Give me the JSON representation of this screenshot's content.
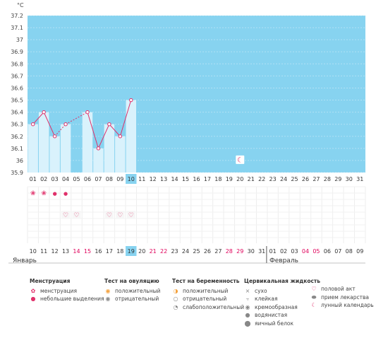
{
  "chart_data": {
    "type": "line",
    "ylabel": "°C",
    "ylim": [
      35.9,
      37.2
    ],
    "yticks": [
      "37.2",
      "37.1",
      "37",
      "36.9",
      "36.8",
      "36.7",
      "36.6",
      "36.5",
      "36.4",
      "36.3",
      "36.2",
      "36.1",
      "36",
      "35.9"
    ],
    "cycle_days": [
      "01",
      "02",
      "03",
      "04",
      "05",
      "06",
      "07",
      "08",
      "09",
      "10",
      "11",
      "12",
      "13",
      "14",
      "15",
      "16",
      "17",
      "18",
      "19",
      "20",
      "21",
      "22",
      "23",
      "24",
      "25",
      "26",
      "27",
      "28",
      "29",
      "30",
      "31"
    ],
    "highlight_cycle_day": "10",
    "temperature_series": {
      "points": [
        {
          "day": 1,
          "value": 36.3
        },
        {
          "day": 2,
          "value": 36.4
        },
        {
          "day": 3,
          "value": 36.2
        },
        {
          "day": 4,
          "value": 36.3
        },
        {
          "day": 6,
          "value": 36.4
        },
        {
          "day": 7,
          "value": 36.1
        },
        {
          "day": 8,
          "value": 36.3
        },
        {
          "day": 9,
          "value": 36.2
        },
        {
          "day": 10,
          "value": 36.5
        }
      ]
    },
    "moon_day": 20,
    "menstruation_days": [
      1,
      2
    ],
    "spotting_days": [
      3,
      4
    ],
    "intercourse_days": [
      4,
      5,
      8,
      9,
      10
    ],
    "calendar_dates": [
      {
        "d": "10",
        "red": false
      },
      {
        "d": "11",
        "red": false
      },
      {
        "d": "12",
        "red": false
      },
      {
        "d": "13",
        "red": false
      },
      {
        "d": "14",
        "red": true
      },
      {
        "d": "15",
        "red": true
      },
      {
        "d": "16",
        "red": false
      },
      {
        "d": "17",
        "red": false
      },
      {
        "d": "18",
        "red": false
      },
      {
        "d": "19",
        "red": false
      },
      {
        "d": "20",
        "red": false
      },
      {
        "d": "21",
        "red": true
      },
      {
        "d": "22",
        "red": true
      },
      {
        "d": "23",
        "red": false
      },
      {
        "d": "24",
        "red": false
      },
      {
        "d": "25",
        "red": false
      },
      {
        "d": "26",
        "red": false
      },
      {
        "d": "27",
        "red": false
      },
      {
        "d": "28",
        "red": true
      },
      {
        "d": "29",
        "red": true
      },
      {
        "d": "30",
        "red": false
      },
      {
        "d": "31",
        "red": false
      },
      {
        "d": "01",
        "red": false
      },
      {
        "d": "02",
        "red": false
      },
      {
        "d": "03",
        "red": false
      },
      {
        "d": "04",
        "red": true
      },
      {
        "d": "05",
        "red": true
      },
      {
        "d": "06",
        "red": false
      },
      {
        "d": "07",
        "red": false
      },
      {
        "d": "08",
        "red": false
      },
      {
        "d": "09",
        "red": false
      }
    ],
    "highlight_calendar_date": "19"
  },
  "months": {
    "first": "Январь",
    "second": "Февраль"
  },
  "legend": {
    "menstruation": {
      "title": "Менструация",
      "items": [
        "менструация",
        "небольшие выделения"
      ]
    },
    "ovulation": {
      "title": "Тест на овуляцию",
      "items": [
        "положительный",
        "отрицательный"
      ]
    },
    "pregnancy": {
      "title": "Тест на беременность",
      "items": [
        "положительный",
        "отрицательный",
        "слабоположительный"
      ]
    },
    "cervical": {
      "title": "Цервикальная жидкость",
      "items": [
        "сухо",
        "клейкая",
        "кремообразная",
        "водянистая",
        "яичный белок"
      ]
    },
    "other": {
      "items": [
        "половой акт",
        "прием лекарства",
        "лунный календарь"
      ]
    }
  },
  "colors": {
    "plot_bg": "#87d3f0",
    "bar_fill": "#d9f2fc",
    "line": "#e0306a",
    "highlight": "#87d3f0"
  }
}
